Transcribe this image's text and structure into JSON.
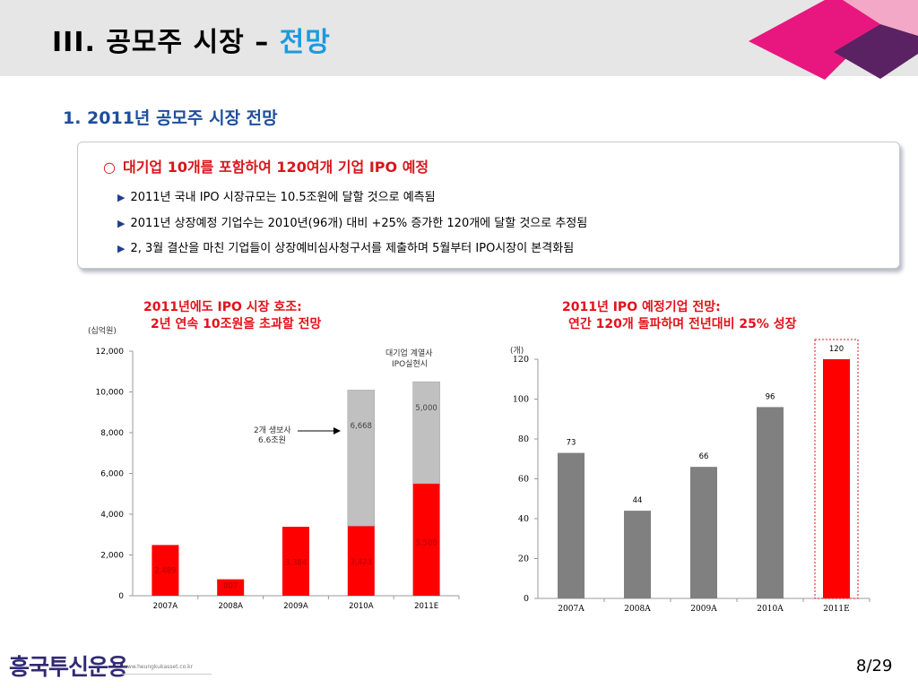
{
  "header": {
    "title_main": "III. 공모주 시장 – ",
    "title_accent": "전망"
  },
  "section": {
    "heading": "1. 2011년 공모주 시장 전망"
  },
  "summary": {
    "circle": "○",
    "headline": "대기업 10개를 포함하여 120여개 기업 IPO 예정",
    "bullet_marker": "▶",
    "bullets": [
      "2011년 국내 IPO 시장규모는 10.5조원에 달할 것으로 예측됨",
      "2011년 상장예정 기업수는 2010년(96개) 대비 +25% 증가한 120개에 달할 것으로 추정됨",
      "2, 3월 결산을 마친 기업들이 상장예비심사청구서를 제출하며 5월부터 IPO시장이 본격화됨"
    ]
  },
  "left_chart": {
    "caption_line1": "2011년에도 IPO 시장 호조:",
    "caption_line2": "2년 연속 10조원을 초과할 전망",
    "unit": "(십억원)",
    "legend_note_line1": "대기업 계열사",
    "legend_note_line2": "IPO실현시",
    "arrow_note_line1": "2개 생보사",
    "arrow_note_line2": "6.6조원"
  },
  "right_chart": {
    "caption_line1": "2011년 IPO 예정기업 전망:",
    "caption_line2": "연간 120개 돌파하며 전년대비 25% 성장",
    "unit": "(개)"
  },
  "chart_data": [
    {
      "type": "bar",
      "stacked": true,
      "categories": [
        "2007A",
        "2008A",
        "2009A",
        "2010A",
        "2011E"
      ],
      "series": [
        {
          "values": [
            2489,
            807,
            3384,
            3423,
            5500
          ],
          "color": "#ff0000"
        },
        {
          "values": [
            0,
            0,
            0,
            6668,
            5000
          ],
          "color": "#c0c0c0"
        }
      ],
      "value_labels": [
        [
          "2,489",
          "807",
          "3,384",
          "3,423",
          "5,500"
        ],
        [
          "",
          "",
          "",
          "6,668",
          "5,000"
        ]
      ],
      "ylim": [
        0,
        12000
      ],
      "yticks": [
        0,
        2000,
        4000,
        6000,
        8000,
        10000,
        12000
      ],
      "ytick_labels": [
        "0",
        "2,000",
        "4,000",
        "6,000",
        "8,000",
        "10,000",
        "12,000"
      ],
      "grid": false
    },
    {
      "type": "bar",
      "categories": [
        "2007A",
        "2008A",
        "2009A",
        "2010A",
        "2011E"
      ],
      "values": [
        73,
        44,
        66,
        96,
        120
      ],
      "value_labels": [
        "73",
        "44",
        "66",
        "96",
        "120"
      ],
      "colors": [
        "#808080",
        "#808080",
        "#808080",
        "#808080",
        "#ff0000"
      ],
      "ylim": [
        0,
        120
      ],
      "yticks": [
        0,
        20,
        40,
        60,
        80,
        100,
        120
      ],
      "ytick_labels": [
        "0",
        "20",
        "40",
        "60",
        "80",
        "100",
        "120"
      ],
      "highlight_category": "2011E",
      "grid": false
    }
  ],
  "footer": {
    "logo": "흥국투신운용",
    "url": "www.heungkukasset.co.kr",
    "page": "8/29"
  },
  "colors": {
    "accent_blue": "#1a9ae0",
    "heading_navy": "#1f4e9c",
    "highlight_red": "#e3121a",
    "deco_magenta": "#e8177f",
    "deco_purple": "#5a2163",
    "logo_purple": "#312a73"
  }
}
